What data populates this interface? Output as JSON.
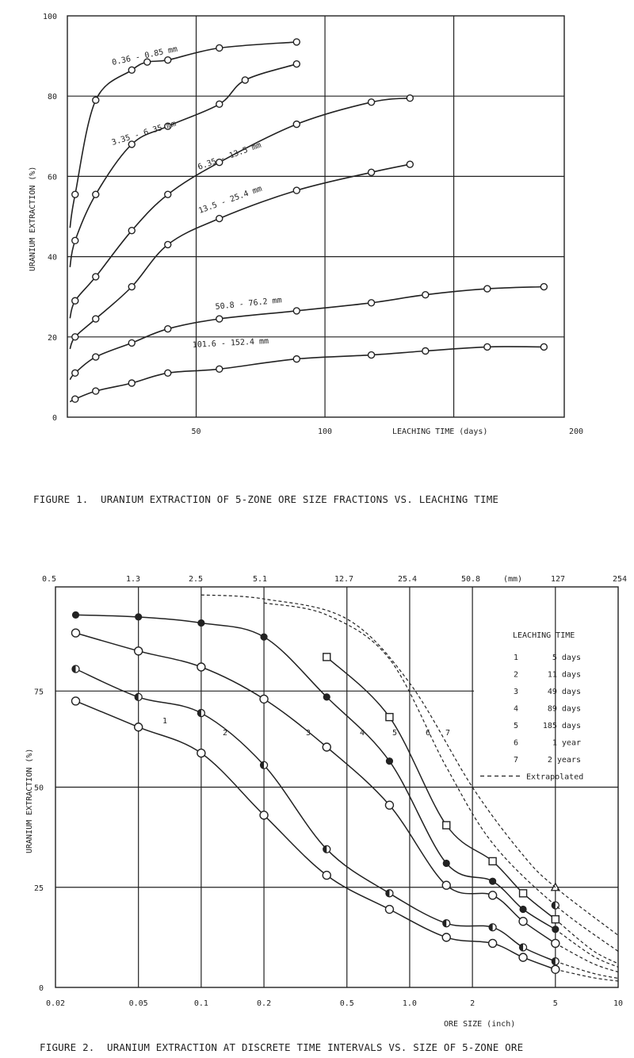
{
  "chart_data": [
    {
      "type": "line",
      "xlabel": "LEACHING TIME (days)",
      "ylabel": "URANIUM EXTRACTION (%)",
      "xlim": [
        0,
        200
      ],
      "ylim": [
        0,
        100
      ],
      "x_ticks": [
        "50",
        "100",
        "200"
      ],
      "y_ticks": [
        "0",
        "20",
        "40",
        "60",
        "80",
        "100"
      ],
      "grid": true,
      "series": [
        {
          "name": "0.36 - 0.85 mm",
          "x": [
            3,
            11,
            25,
            31,
            39,
            59,
            89
          ],
          "y": [
            55.5,
            79,
            86.5,
            88.5,
            89,
            92,
            93.5
          ]
        },
        {
          "name": "3.35 - 6.35 mm",
          "x": [
            3,
            11,
            25,
            39,
            59,
            69,
            89
          ],
          "y": [
            44,
            55.5,
            68,
            72.5,
            78,
            84,
            88
          ]
        },
        {
          "name": "6.35 - 13.5 mm",
          "x": [
            3,
            11,
            25,
            39,
            59,
            89,
            118,
            133
          ],
          "y": [
            29,
            35,
            46.5,
            55.5,
            63.5,
            73,
            78.5,
            79.5
          ]
        },
        {
          "name": "13.5 - 25.4 mm",
          "x": [
            3,
            11,
            25,
            39,
            59,
            89,
            118,
            133
          ],
          "y": [
            20,
            24.5,
            32.5,
            43,
            49.5,
            56.5,
            61,
            63
          ]
        },
        {
          "name": "50.8 - 76.2 mm",
          "x": [
            3,
            11,
            25,
            39,
            59,
            89,
            118,
            139,
            163,
            185
          ],
          "y": [
            11,
            15,
            18.5,
            22,
            24.5,
            26.5,
            28.5,
            30.5,
            32,
            32.5
          ]
        },
        {
          "name": "101.6 - 152.4 mm",
          "x": [
            3,
            11,
            25,
            39,
            59,
            89,
            118,
            139,
            163,
            185
          ],
          "y": [
            4.5,
            6.5,
            8.5,
            11,
            12,
            14.5,
            15.5,
            16.5,
            17.5,
            17.5
          ]
        }
      ]
    },
    {
      "type": "line",
      "xlabel": "ORE SIZE (inch)",
      "ylabel": "URANIUM EXTRACTION (%)",
      "x_scale": "log",
      "xlim": [
        0.02,
        10
      ],
      "ylim": [
        0,
        100
      ],
      "x_ticks": [
        "0.02",
        "0.05",
        "0.1",
        "0.2",
        "0.5",
        "1.0",
        "2",
        "5",
        "10"
      ],
      "top_ticks": [
        "0.5",
        "1.3",
        "2.5",
        "5.1",
        "12.7",
        "25.4",
        "50.8",
        "(mm)",
        "127",
        "254"
      ],
      "y_ticks": [
        "0",
        "25",
        "50",
        "75"
      ],
      "grid": true,
      "legend": {
        "title": "LEACHING TIME",
        "placement": "top-right",
        "entries": [
          {
            "num": "1",
            "text": "5 days"
          },
          {
            "num": "2",
            "text": "11 days"
          },
          {
            "num": "3",
            "text": "49 days"
          },
          {
            "num": "4",
            "text": "89 days"
          },
          {
            "num": "5",
            "text": "185 days"
          },
          {
            "num": "6",
            "text": "1 year"
          },
          {
            "num": "7",
            "text": "2 years"
          },
          {
            "num": "",
            "text": "Extrapolated"
          }
        ]
      },
      "series": [
        {
          "name": "1",
          "marker": "circle",
          "x": [
            0.025,
            0.05,
            0.1,
            0.2,
            0.4,
            0.8,
            1.5,
            2.5,
            3.5,
            5
          ],
          "y": [
            71.5,
            65,
            58.5,
            43,
            28,
            19.5,
            12.5,
            11,
            7.5,
            4.5
          ]
        },
        {
          "name": "2",
          "marker": "half",
          "x": [
            0.025,
            0.05,
            0.1,
            0.2,
            0.4,
            0.8,
            1.5,
            2.5,
            3.5,
            5
          ],
          "y": [
            79.5,
            72.5,
            68.5,
            55.5,
            34.5,
            23.5,
            16,
            15,
            10,
            6.5
          ]
        },
        {
          "name": "3",
          "marker": "circle",
          "x": [
            0.025,
            0.05,
            0.1,
            0.2,
            0.4,
            0.8,
            1.5,
            2.5,
            3.5,
            5
          ],
          "y": [
            88.5,
            84,
            80,
            72,
            60,
            45.5,
            25.5,
            23,
            16.5,
            11
          ]
        },
        {
          "name": "4",
          "marker": "filled",
          "x": [
            0.025,
            0.05,
            0.1,
            0.2,
            0.4,
            0.8,
            1.5,
            2.5,
            3.5,
            5
          ],
          "y": [
            93,
            92.5,
            91,
            87.5,
            72.5,
            56.5,
            31,
            26.5,
            19.5,
            14.5
          ]
        },
        {
          "name": "5",
          "marker": "square",
          "x": [
            0.4,
            0.8,
            1.5,
            2.5,
            3.5,
            5
          ],
          "y": [
            82.5,
            67.5,
            40.5,
            31.5,
            23.5,
            17
          ]
        },
        {
          "name": "6",
          "marker": "half",
          "x": [
            5
          ],
          "y": [
            20.5
          ]
        },
        {
          "name": "7",
          "marker": "triangle",
          "x": [
            5
          ],
          "y": [
            25
          ]
        }
      ]
    }
  ],
  "curve_labels_1": [
    "0.36 - 0.85 mm",
    "3.35 - 6.35 mm",
    "6.35 - 13.5 mm",
    "13.5 - 25.4 mm",
    "50.8 - 76.2 mm",
    "101.6 - 152.4 mm"
  ],
  "curve_labels_2": [
    "1",
    "2",
    "3",
    "4",
    "5",
    "6",
    "7"
  ],
  "figure1_caption": "FIGURE 1.  URANIUM EXTRACTION OF 5-ZONE ORE SIZE FRACTIONS VS. LEACHING TIME",
  "figure2_caption": "FIGURE 2.  URANIUM EXTRACTION AT DISCRETE TIME INTERVALS VS. SIZE OF 5-ZONE ORE"
}
